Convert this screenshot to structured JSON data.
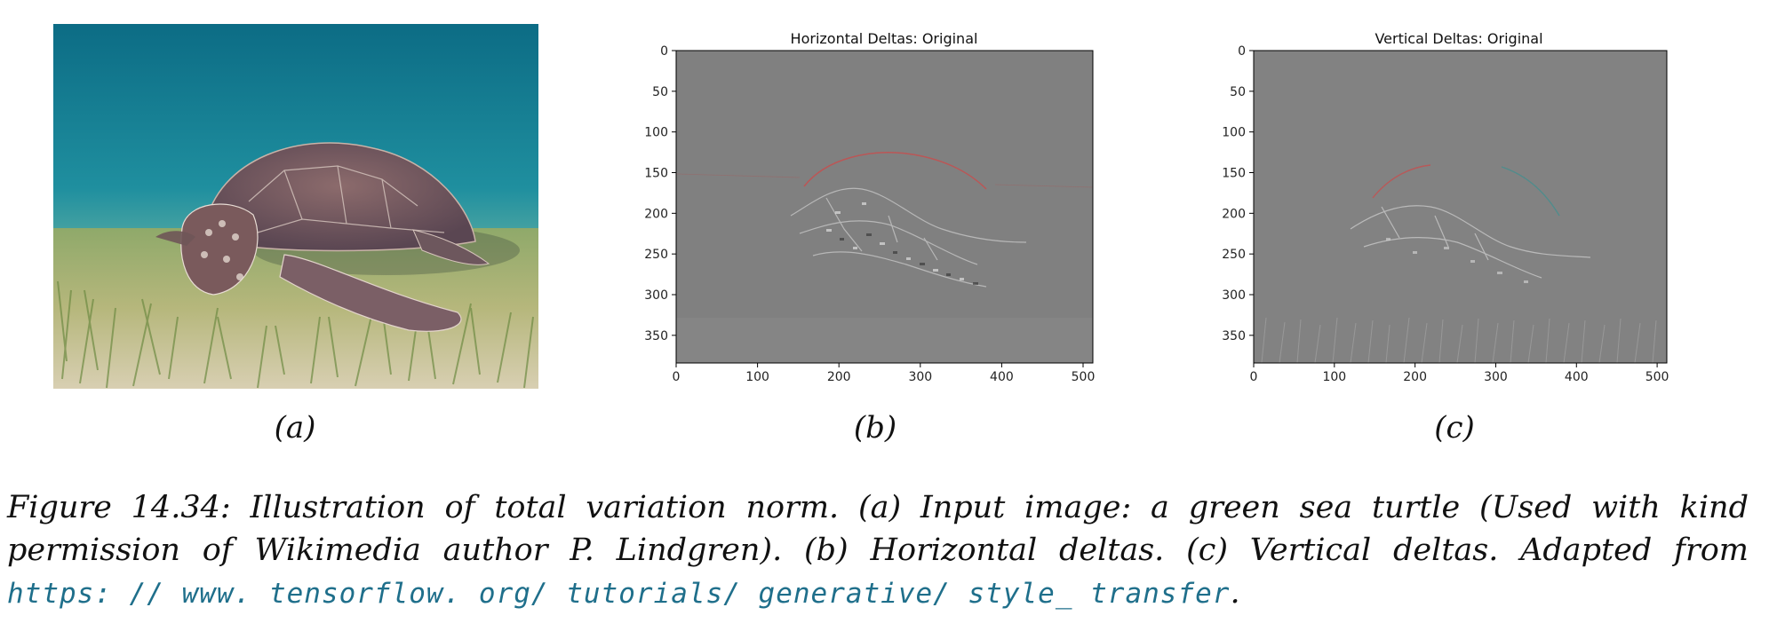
{
  "subcaptions": {
    "a": "(a)",
    "b": "(b)",
    "c": "(c)"
  },
  "caption": {
    "line1": "Figure 14.34: Illustration of total variation norm. (a) Input image: a green sea turtle (Used with kind",
    "line2": "permission of Wikimedia author P. Lindgren). (b) Horizontal deltas. (c) Vertical deltas. Adapted from",
    "url": "https: // www. tensorflow. org/ tutorials/ generative/ style_ transfer",
    "url_trailing": "."
  },
  "plots": [
    {
      "title": "Horizontal Deltas: Original",
      "x_ticks": [
        "0",
        "100",
        "200",
        "300",
        "400",
        "500"
      ],
      "y_ticks": [
        "0",
        "50",
        "100",
        "150",
        "200",
        "250",
        "300",
        "350"
      ]
    },
    {
      "title": "Vertical Deltas: Original",
      "x_ticks": [
        "0",
        "100",
        "200",
        "300",
        "400",
        "500"
      ],
      "y_ticks": [
        "0",
        "50",
        "100",
        "150",
        "200",
        "250",
        "300",
        "350"
      ]
    }
  ],
  "colors": {
    "url": "#1f6f8b",
    "plot_bg": "#808080",
    "water_top": "#0f6f86",
    "water_bottom": "#2aa3a8"
  }
}
